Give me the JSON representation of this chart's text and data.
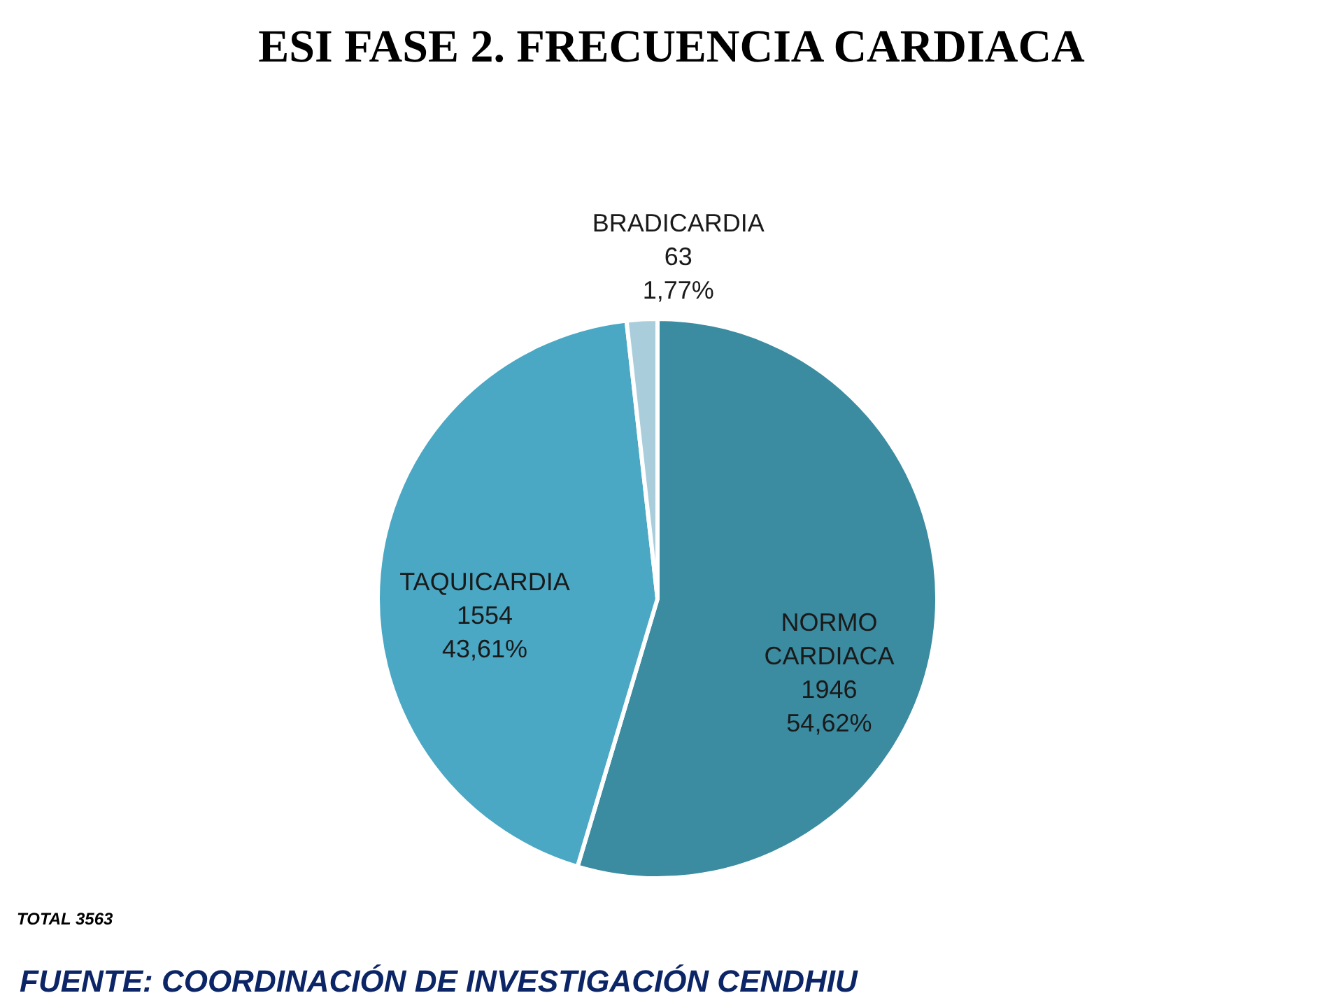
{
  "chart_data": {
    "type": "pie",
    "title": "ESI FASE 2. FRECUENCIA CARDIACA",
    "categories": [
      "NORMO CARDIACA",
      "TAQUICARDIA",
      "BRADICARDIA"
    ],
    "values": [
      1946,
      1554,
      63
    ],
    "colors": [
      "#3b8ba1",
      "#4aa8c4",
      "#a9cddb"
    ],
    "value_labels": [
      "1946\n54,62%",
      "1554\n43,61%",
      "63\n1,77%"
    ],
    "annotations": [
      "TOTAL 3563",
      "FUENTE:   COORDINACIÓN DE INVESTIGACIÓN CENDHIU"
    ]
  }
}
